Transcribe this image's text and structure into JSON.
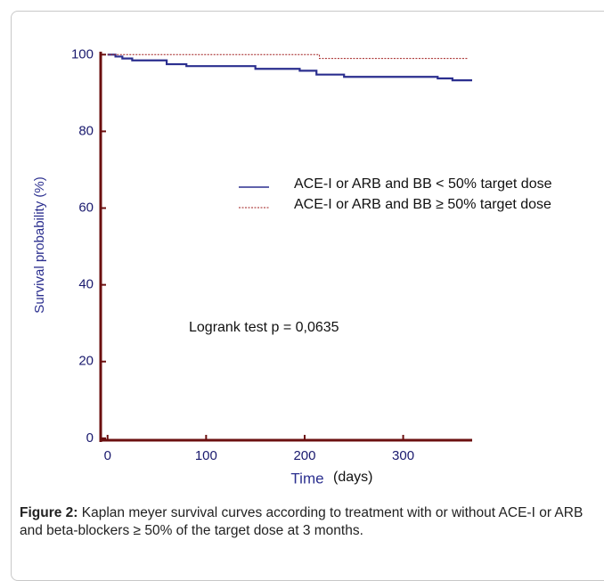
{
  "chart_data": {
    "type": "step",
    "y_label": "Survival probability (%)",
    "x_label": "Time",
    "x_label_unit": "(days)",
    "annotation": "Logrank test p = 0,0635",
    "xlim": [
      -7,
      370
    ],
    "ylim": [
      -0.5,
      100.3
    ],
    "xticks": [
      0,
      100,
      200,
      300
    ],
    "yticks": [
      0,
      20,
      40,
      60,
      80,
      100
    ],
    "series": [
      {
        "name": "ACE-I or ARB and BB < 50% target dose",
        "color": "#2b2f8f",
        "dashed": false,
        "x": [
          0,
          8,
          15,
          25,
          60,
          80,
          150,
          195,
          212,
          240,
          335,
          350,
          370
        ],
        "values": [
          100,
          99.5,
          99,
          98.5,
          97.5,
          97,
          96.3,
          95.8,
          94.8,
          94.2,
          93.8,
          93.3,
          93.3
        ]
      },
      {
        "name": "ACE-I or ARB and BB ≥ 50% target dose",
        "color": "#a01c1c",
        "dashed": true,
        "x": [
          0,
          215,
          365
        ],
        "values": [
          100,
          99,
          99
        ]
      }
    ],
    "caption": {
      "label": "Figure 2:",
      "text": " Kaplan meyer survival curves according to treatment with or without ACE-I or ARB and beta-blockers ≥ 50% of the target dose at 3 months."
    }
  }
}
